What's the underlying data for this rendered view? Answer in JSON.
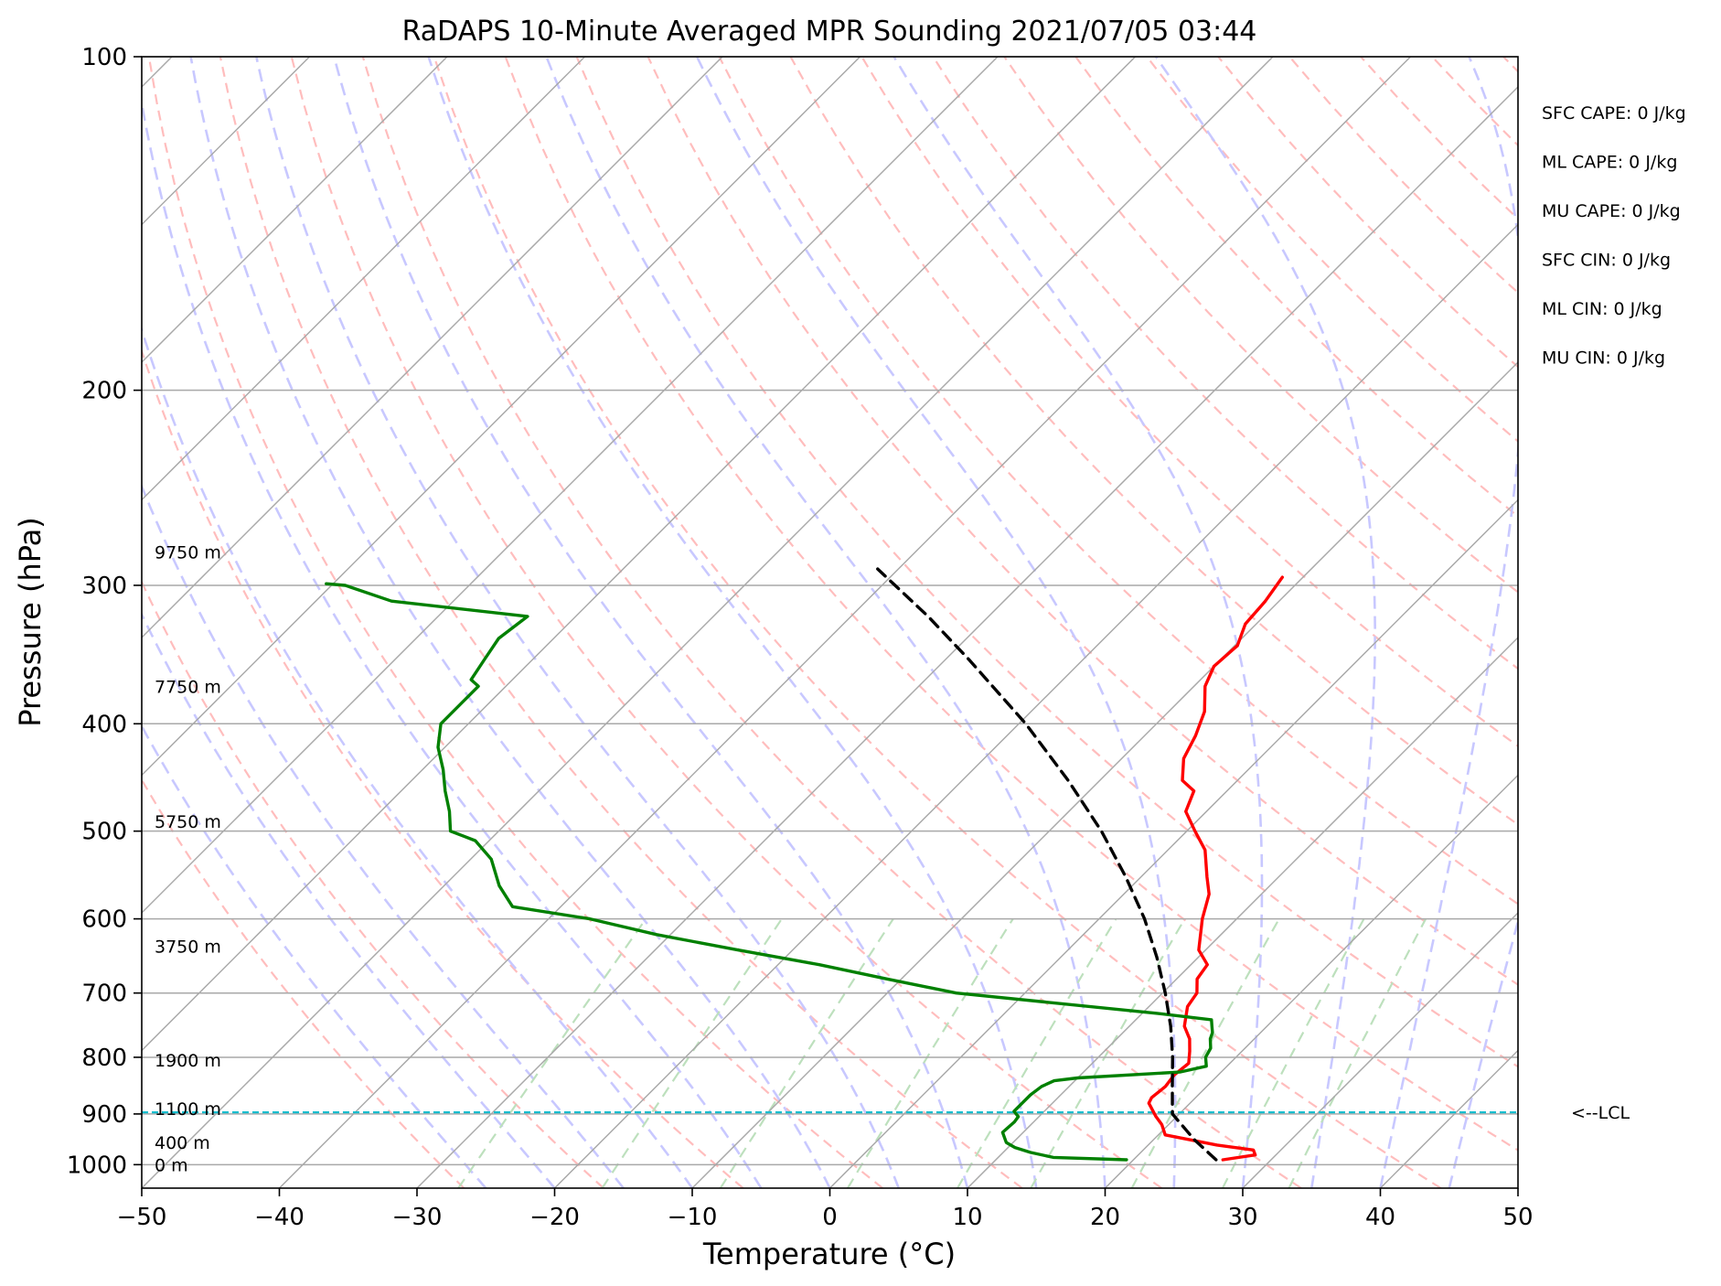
{
  "chart_data": {
    "type": "skew-t",
    "title": "RaDAPS 10-Minute Averaged MPR Sounding 2021/07/05 03:44",
    "xlabel": "Temperature (°C)",
    "ylabel": "Pressure (hPa)",
    "xlim": [
      -50,
      50
    ],
    "ylim": [
      1050,
      100
    ],
    "y_scale": "log",
    "grid": true,
    "x_ticks": [
      -50,
      -40,
      -30,
      -20,
      -10,
      0,
      10,
      20,
      30,
      40,
      50
    ],
    "x_tick_labels": [
      "−50",
      "−40",
      "−30",
      "−20",
      "−10",
      "0",
      "10",
      "20",
      "30",
      "40",
      "50"
    ],
    "y_ticks": [
      100,
      200,
      300,
      400,
      500,
      600,
      700,
      800,
      900,
      1000
    ],
    "y_tick_labels": [
      "100",
      "200",
      "300",
      "400",
      "500",
      "600",
      "700",
      "800",
      "900",
      "1000"
    ],
    "series": [
      {
        "role": "temperature",
        "color": "#ff0000",
        "style": "solid",
        "p": [
          990,
          980,
          970,
          960,
          940,
          920,
          905,
          880,
          870,
          850,
          830,
          810,
          790,
          770,
          750,
          720,
          700,
          680,
          660,
          640,
          600,
          570,
          550,
          520,
          500,
          480,
          460,
          450,
          430,
          410,
          390,
          370,
          355,
          340,
          325,
          310,
          295
        ],
        "t": [
          26.5,
          28.5,
          28.0,
          25.0,
          20.5,
          19.5,
          18.5,
          17.0,
          16.8,
          17.0,
          16.8,
          17.0,
          16.2,
          15.3,
          14.0,
          12.8,
          12.5,
          11.5,
          11.2,
          9.5,
          7.5,
          6.2,
          4.8,
          2.7,
          0.6,
          -1.5,
          -2.4,
          -4.0,
          -5.5,
          -6.3,
          -7.4,
          -9.2,
          -10.0,
          -9.8,
          -10.8,
          -11.0,
          -11.5
        ]
      },
      {
        "role": "dewpoint",
        "color": "#008000",
        "style": "solid",
        "p": [
          990,
          985,
          975,
          965,
          955,
          945,
          935,
          915,
          905,
          895,
          880,
          865,
          850,
          840,
          835,
          825,
          815,
          800,
          785,
          770,
          760,
          750,
          740,
          730,
          700,
          680,
          660,
          640,
          620,
          600,
          585,
          560,
          530,
          510,
          500,
          480,
          460,
          440,
          420,
          400,
          380,
          370,
          365,
          350,
          335,
          320,
          310,
          300,
          299
        ],
        "td": [
          19.5,
          14.0,
          12.0,
          10.5,
          9.5,
          9.0,
          8.5,
          8.6,
          8.5,
          7.8,
          7.8,
          7.8,
          8.0,
          8.5,
          10.0,
          17.0,
          18.5,
          17.8,
          17.5,
          16.8,
          16.5,
          16.0,
          15.5,
          11.0,
          -5.0,
          -11.0,
          -17.0,
          -24.0,
          -31.0,
          -37.0,
          -43.5,
          -46.0,
          -48.5,
          -51.0,
          -53.5,
          -55.0,
          -56.8,
          -58.5,
          -60.5,
          -62.0,
          -62.0,
          -62.0,
          -63.0,
          -63.5,
          -64.0,
          -63.5,
          -74.5,
          -79.0,
          -80.5
        ]
      },
      {
        "role": "parcel",
        "color": "#000000",
        "style": "dashed",
        "p": [
          990,
          950,
          900,
          850,
          800,
          750,
          700,
          650,
          600,
          550,
          500,
          450,
          400,
          350,
          320,
          290
        ],
        "t": [
          26.0,
          23.0,
          19.5,
          17.5,
          15.4,
          13.0,
          10.2,
          7.0,
          3.3,
          -1.1,
          -6.2,
          -12.3,
          -19.5,
          -28.3,
          -34.4,
          -41.5
        ]
      }
    ],
    "lcl_pressure": 897,
    "lcl_label": "<--LCL",
    "height_labels": [
      {
        "p": 1000,
        "label": "0 m"
      },
      {
        "p": 955,
        "label": "400 m"
      },
      {
        "p": 890,
        "label": "1100 m"
      },
      {
        "p": 805,
        "label": "1900 m"
      },
      {
        "p": 635,
        "label": "3750 m"
      },
      {
        "p": 490,
        "label": "5750 m"
      },
      {
        "p": 370,
        "label": "7750 m"
      },
      {
        "p": 280,
        "label": "9750 m"
      }
    ],
    "indices": [
      "SFC CAPE: 0 J/kg",
      "ML CAPE: 0 J/kg",
      "MU CAPE: 0 J/kg",
      "SFC CIN: 0 J/kg",
      "ML CIN: 0 J/kg",
      "MU CIN: 0 J/kg"
    ],
    "background_lines": {
      "isotherms": {
        "color": "#a9a9a9",
        "step": 10
      },
      "dry_adiabats": {
        "color": "#ffbdbd",
        "style": "dashed"
      },
      "moist_adiabats": {
        "color": "#c8c8ff",
        "style": "dashed"
      },
      "mixing_ratio": {
        "color": "#bde0bd",
        "style": "dashed",
        "p_top": 600
      }
    }
  }
}
